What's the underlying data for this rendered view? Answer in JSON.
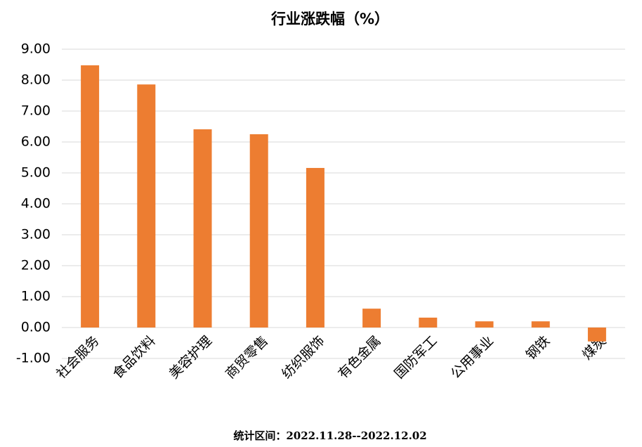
{
  "chart_data": {
    "type": "bar",
    "title": "行业涨跌幅（%）",
    "categories": [
      "社会服务",
      "食品饮料",
      "美容护理",
      "商贸零售",
      "纺织服饰",
      "有色金属",
      "国防军工",
      "公用事业",
      "钢铁",
      "煤炭"
    ],
    "values": [
      8.48,
      7.86,
      6.41,
      6.25,
      5.16,
      0.61,
      0.32,
      0.2,
      0.2,
      -0.45
    ],
    "color": "#ed7d31",
    "ylim": [
      -1,
      9
    ],
    "yticks": [
      {
        "value": -1,
        "label": "-1.00"
      },
      {
        "value": 0,
        "label": "0.00"
      },
      {
        "value": 1,
        "label": "1.00"
      },
      {
        "value": 2,
        "label": "2.00"
      },
      {
        "value": 3,
        "label": "3.00"
      },
      {
        "value": 4,
        "label": "4.00"
      },
      {
        "value": 5,
        "label": "5.00"
      },
      {
        "value": 6,
        "label": "6.00"
      },
      {
        "value": 7,
        "label": "7.00"
      },
      {
        "value": 8,
        "label": "8.00"
      },
      {
        "value": 9,
        "label": "9.00"
      }
    ],
    "grid": true,
    "footnote": "统计区间：2022.11.28--2022.12.02"
  }
}
